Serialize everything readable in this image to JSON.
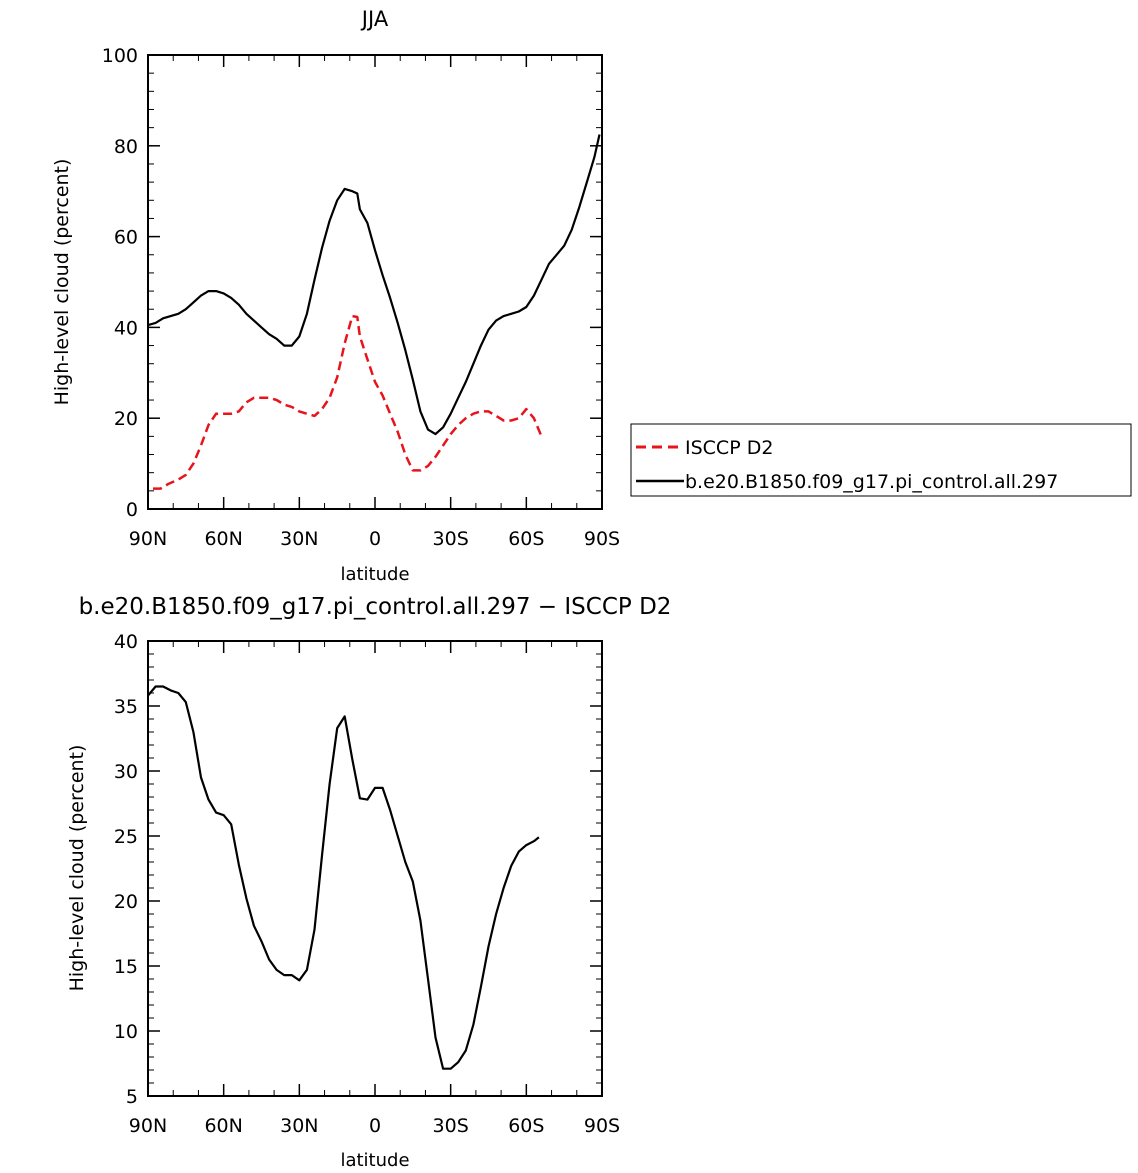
{
  "chart_data": [
    {
      "type": "line",
      "title": "JJA",
      "xlabel": "latitude",
      "ylabel": "High-level cloud (percent)",
      "xlim": [
        -90,
        90
      ],
      "ylim": [
        0,
        100
      ],
      "x_ticks": [
        -90,
        -60,
        -30,
        0,
        30,
        60,
        90
      ],
      "x_tick_labels": [
        "90N",
        "60N",
        "30N",
        "0",
        "30S",
        "60S",
        "90S"
      ],
      "y_ticks": [
        0,
        20,
        40,
        60,
        80,
        100
      ],
      "y_tick_labels": [
        "0",
        "20",
        "40",
        "60",
        "80",
        "100"
      ],
      "legend_position": "right",
      "series": [
        {
          "name": "ISCCP D2",
          "color": "#e8141c",
          "style": "dashed",
          "x": [
            -88,
            -85,
            -82,
            -78,
            -75,
            -72,
            -69,
            -66,
            -63,
            -60,
            -57,
            -54,
            -51,
            -48,
            -45,
            -42,
            -39,
            -36,
            -33,
            -30,
            -27,
            -24,
            -21,
            -18,
            -15,
            -12,
            -9,
            -7,
            -6,
            -3,
            0,
            3,
            6,
            9,
            12,
            15,
            18,
            21,
            24,
            27,
            30,
            33,
            36,
            39,
            42,
            45,
            48,
            51,
            54,
            57,
            60,
            63,
            66
          ],
          "y": [
            4.5,
            4.5,
            5.5,
            6.5,
            7.5,
            10,
            14,
            18.5,
            21,
            21,
            21,
            21.5,
            23.5,
            24.5,
            24.5,
            24.5,
            24,
            23,
            22.5,
            21.5,
            21,
            20.5,
            22,
            24.5,
            29,
            36.5,
            42.5,
            42.3,
            38,
            33,
            28,
            25,
            21,
            17,
            12,
            8.5,
            8.5,
            9.5,
            11.5,
            14,
            16.5,
            18.5,
            20,
            21,
            21.5,
            21.5,
            20.5,
            19.5,
            19.5,
            20,
            22,
            20,
            16
          ]
        },
        {
          "name": "b.e20.B1850.f09_g17.pi_control.all.297",
          "color": "#000000",
          "style": "solid",
          "x": [
            -90,
            -87,
            -84,
            -81,
            -78,
            -75,
            -72,
            -69,
            -66,
            -63,
            -60,
            -57,
            -54,
            -51,
            -48,
            -45,
            -42,
            -39,
            -36,
            -33,
            -30,
            -27,
            -24,
            -21,
            -18,
            -15,
            -12,
            -9,
            -7,
            -6,
            -3,
            0,
            3,
            6,
            9,
            12,
            15,
            18,
            21,
            24,
            27,
            30,
            33,
            36,
            39,
            42,
            45,
            48,
            51,
            54,
            57,
            60,
            63,
            66,
            69,
            72,
            75,
            78,
            81,
            84,
            87,
            89
          ],
          "y": [
            40.5,
            41,
            42,
            42.5,
            43,
            44,
            45.5,
            47,
            48,
            48,
            47.5,
            46.5,
            45,
            43,
            41.5,
            40,
            38.5,
            37.5,
            36,
            36,
            38,
            43,
            50.5,
            57.5,
            63.5,
            68,
            70.5,
            70,
            69.5,
            66,
            63,
            57,
            51.5,
            46.5,
            41,
            35,
            28.5,
            21.5,
            17.5,
            16.5,
            18,
            21,
            24.5,
            28,
            32,
            36,
            39.5,
            41.5,
            42.5,
            43,
            43.5,
            44.5,
            47,
            50.5,
            54,
            56,
            58,
            61.5,
            66.5,
            72,
            77.5,
            82.5
          ]
        }
      ]
    },
    {
      "type": "line",
      "title": "b.e20.B1850.f09_g17.pi_control.all.297 − ISCCP D2",
      "xlabel": "latitude",
      "ylabel": "High-level cloud (percent)",
      "xlim": [
        -90,
        90
      ],
      "ylim": [
        5,
        40
      ],
      "x_ticks": [
        -90,
        -60,
        -30,
        0,
        30,
        60,
        90
      ],
      "x_tick_labels": [
        "90N",
        "60N",
        "30N",
        "0",
        "30S",
        "60S",
        "90S"
      ],
      "y_ticks": [
        5,
        10,
        15,
        20,
        25,
        30,
        35,
        40
      ],
      "y_tick_labels": [
        "5",
        "10",
        "15",
        "20",
        "25",
        "30",
        "35",
        "40"
      ],
      "series": [
        {
          "color": "#000000",
          "style": "solid",
          "x": [
            -90,
            -87,
            -84,
            -81,
            -78,
            -75,
            -72,
            -69,
            -66,
            -63,
            -60,
            -57,
            -54,
            -51,
            -48,
            -45,
            -42,
            -39,
            -36,
            -33,
            -30,
            -27,
            -24,
            -21,
            -18,
            -15,
            -12,
            -9,
            -6,
            -3,
            0,
            3,
            6,
            9,
            12,
            15,
            18,
            21,
            24,
            27,
            30,
            33,
            36,
            39,
            42,
            45,
            48,
            51,
            54,
            57,
            60,
            63,
            65
          ],
          "y": [
            35.8,
            36.5,
            36.5,
            36.2,
            36,
            35.3,
            33,
            29.5,
            27.8,
            26.8,
            26.6,
            25.9,
            22.8,
            20.2,
            18.1,
            16.9,
            15.5,
            14.7,
            14.3,
            14.3,
            13.9,
            14.7,
            17.8,
            23.5,
            29,
            33.3,
            34.2,
            30.9,
            27.9,
            27.8,
            28.7,
            28.7,
            27,
            25,
            23,
            21.5,
            18.5,
            14,
            9.5,
            7.1,
            7.1,
            7.6,
            8.5,
            10.5,
            13.4,
            16.5,
            19,
            21,
            22.7,
            23.8,
            24.3,
            24.6,
            24.9
          ]
        }
      ]
    }
  ]
}
